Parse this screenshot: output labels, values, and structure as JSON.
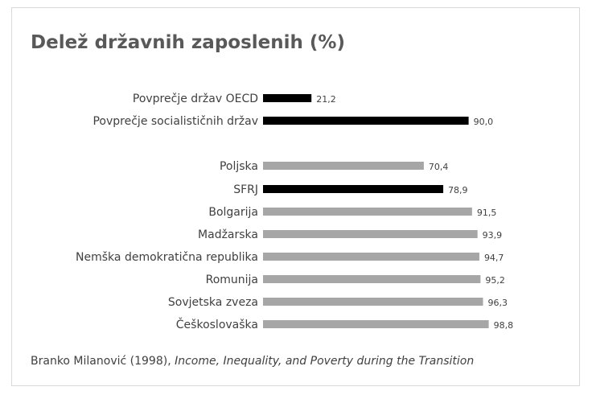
{
  "chart_data": {
    "type": "bar",
    "orientation": "horizontal",
    "title": "Delež državnih zaposlenih (%)",
    "categories": [
      "Povprečje držav OECD",
      "Povprečje socialističnih držav",
      "Poljska",
      "SFRJ",
      "Bolgarija",
      "Madžarska",
      "Nemška demokratična republika",
      "Romunija",
      "Sovjetska zveza",
      "Češkoslovaška"
    ],
    "values": [
      21.2,
      90.0,
      70.4,
      78.9,
      91.5,
      93.9,
      94.7,
      95.2,
      96.3,
      98.8
    ],
    "value_labels": [
      "21,2",
      "90,0",
      "70,4",
      "78,9",
      "91,5",
      "93,9",
      "94,7",
      "95,2",
      "96,3",
      "98,8"
    ],
    "bar_colors": [
      "#000000",
      "#000000",
      "#a6a6a6",
      "#000000",
      "#a6a6a6",
      "#a6a6a6",
      "#a6a6a6",
      "#a6a6a6",
      "#a6a6a6",
      "#a6a6a6"
    ],
    "xlim": [
      0,
      100
    ],
    "grid": false,
    "legend": "none"
  },
  "source": {
    "prefix": "Branko Milanović (1998), ",
    "italic": "Income, Inequality, and Poverty during the Transition"
  }
}
